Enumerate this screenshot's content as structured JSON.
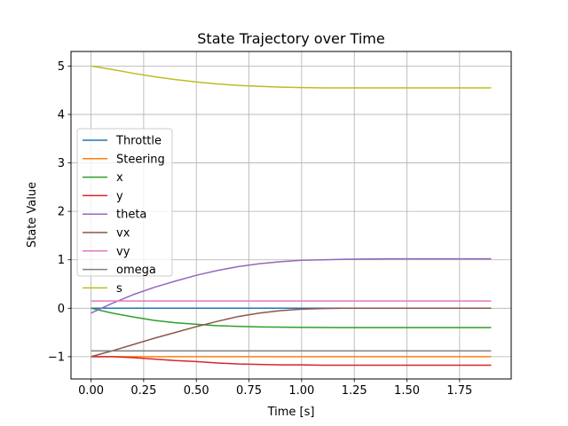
{
  "chart_data": {
    "type": "line",
    "title": "State Trajectory over Time",
    "xlabel": "Time [s]",
    "ylabel": "State Value",
    "xlim": [
      -0.095,
      1.995
    ],
    "ylim": [
      -1.46,
      5.3
    ],
    "xticks": [
      0.0,
      0.25,
      0.5,
      0.75,
      1.0,
      1.25,
      1.5,
      1.75
    ],
    "xtick_labels": [
      "0.00",
      "0.25",
      "0.50",
      "0.75",
      "1.00",
      "1.25",
      "1.50",
      "1.75"
    ],
    "yticks": [
      -1,
      0,
      1,
      2,
      3,
      4,
      5
    ],
    "ytick_labels": [
      "−1",
      "0",
      "1",
      "2",
      "3",
      "4",
      "5"
    ],
    "grid": true,
    "legend_position": "center-left",
    "x": [
      0.0,
      0.1,
      0.2,
      0.3,
      0.4,
      0.5,
      0.6,
      0.7,
      0.8,
      0.9,
      1.0,
      1.1,
      1.2,
      1.3,
      1.4,
      1.5,
      1.6,
      1.7,
      1.8,
      1.9
    ],
    "series": [
      {
        "name": "Throttle",
        "color": "#1f77b4",
        "values": [
          0.0,
          0.0,
          0.0,
          0.0,
          0.0,
          0.0,
          0.0,
          0.0,
          0.0,
          0.0,
          0.0,
          0.0,
          0.0,
          0.0,
          0.0,
          0.0,
          0.0,
          0.0,
          0.0,
          0.0
        ]
      },
      {
        "name": "Steering",
        "color": "#ff7f0e",
        "values": [
          -1.0,
          -1.0,
          -1.0,
          -1.0,
          -1.0,
          -1.0,
          -1.0,
          -1.0,
          -1.0,
          -1.0,
          -1.0,
          -1.0,
          -1.0,
          -1.0,
          -1.0,
          -1.0,
          -1.0,
          -1.0,
          -1.0,
          -1.0
        ]
      },
      {
        "name": "x",
        "color": "#2ca02c",
        "values": [
          0.0,
          -0.1,
          -0.18,
          -0.25,
          -0.3,
          -0.33,
          -0.36,
          -0.375,
          -0.385,
          -0.39,
          -0.395,
          -0.398,
          -0.4,
          -0.4,
          -0.4,
          -0.4,
          -0.4,
          -0.4,
          -0.4,
          -0.4
        ]
      },
      {
        "name": "y",
        "color": "#d62728",
        "values": [
          -1.0,
          -1.0,
          -1.02,
          -1.05,
          -1.08,
          -1.1,
          -1.13,
          -1.15,
          -1.16,
          -1.17,
          -1.17,
          -1.175,
          -1.175,
          -1.175,
          -1.175,
          -1.175,
          -1.175,
          -1.175,
          -1.175,
          -1.175
        ]
      },
      {
        "name": "theta",
        "color": "#9467bd",
        "values": [
          -0.1,
          0.1,
          0.28,
          0.43,
          0.56,
          0.68,
          0.78,
          0.86,
          0.92,
          0.96,
          0.99,
          1.0,
          1.01,
          1.015,
          1.02,
          1.02,
          1.02,
          1.02,
          1.02,
          1.02
        ]
      },
      {
        "name": "vx",
        "color": "#8c564b",
        "values": [
          -1.0,
          -0.88,
          -0.75,
          -0.62,
          -0.5,
          -0.38,
          -0.27,
          -0.17,
          -0.1,
          -0.05,
          -0.02,
          -0.005,
          0.0,
          0.0,
          0.0,
          0.0,
          0.0,
          0.0,
          0.0,
          0.0
        ]
      },
      {
        "name": "vy",
        "color": "#e377c2",
        "values": [
          0.15,
          0.15,
          0.15,
          0.15,
          0.15,
          0.15,
          0.15,
          0.15,
          0.15,
          0.15,
          0.15,
          0.15,
          0.15,
          0.15,
          0.15,
          0.15,
          0.15,
          0.15,
          0.15,
          0.15
        ]
      },
      {
        "name": "omega",
        "color": "#7f7f7f",
        "values": [
          -0.88,
          -0.88,
          -0.88,
          -0.88,
          -0.88,
          -0.88,
          -0.88,
          -0.88,
          -0.88,
          -0.88,
          -0.88,
          -0.88,
          -0.88,
          -0.88,
          -0.88,
          -0.88,
          -0.88,
          -0.88,
          -0.88,
          -0.88
        ]
      },
      {
        "name": "s",
        "color": "#bcbd22",
        "values": [
          5.0,
          4.93,
          4.85,
          4.78,
          4.72,
          4.67,
          4.63,
          4.6,
          4.58,
          4.565,
          4.555,
          4.55,
          4.55,
          4.55,
          4.55,
          4.55,
          4.55,
          4.55,
          4.55,
          4.55
        ]
      }
    ]
  }
}
